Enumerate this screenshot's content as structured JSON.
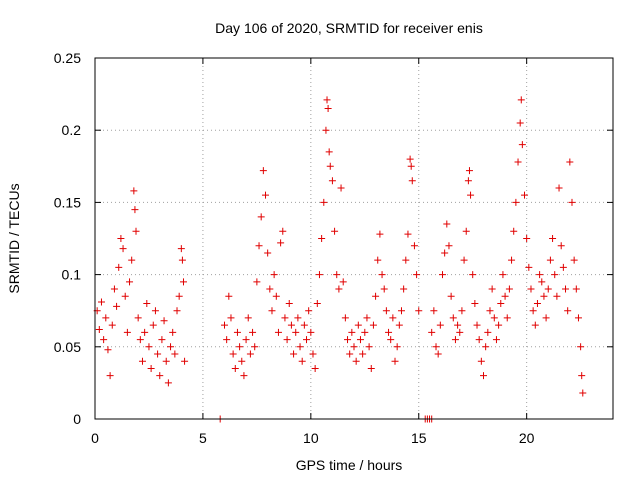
{
  "chart_data": {
    "type": "scatter",
    "title": "Day 106 of 2020, SRMTID for receiver enis",
    "xlabel": "GPS time / hours",
    "ylabel": "SRMTID / TECUs",
    "xlim": [
      0,
      24
    ],
    "ylim": [
      0,
      0.25
    ],
    "x_ticks": [
      0,
      5,
      10,
      15,
      20
    ],
    "x_tick_labels": [
      "0",
      "5",
      "10",
      "15",
      "20"
    ],
    "y_ticks": [
      0,
      0.05,
      0.1,
      0.15,
      0.2,
      0.25
    ],
    "y_tick_labels": [
      "0",
      "0.05",
      "0.1",
      "0.15",
      "0.2",
      "0.25"
    ],
    "grid": true,
    "marker": "plus",
    "color": "#e00000",
    "series": [
      {
        "name": "SRMTID",
        "segments": [
          {
            "x_start": 0.0,
            "x_end": 4.2
          },
          {
            "x_start": 5.8,
            "x_end": 15.0
          },
          {
            "x_start": 15.6,
            "x_end": 22.6
          }
        ],
        "points": [
          [
            0.1,
            0.075
          ],
          [
            0.2,
            0.062
          ],
          [
            0.3,
            0.081
          ],
          [
            0.4,
            0.055
          ],
          [
            0.5,
            0.07
          ],
          [
            0.6,
            0.048
          ],
          [
            0.7,
            0.03
          ],
          [
            0.8,
            0.065
          ],
          [
            0.9,
            0.09
          ],
          [
            1.0,
            0.078
          ],
          [
            1.1,
            0.105
          ],
          [
            1.2,
            0.125
          ],
          [
            1.3,
            0.118
          ],
          [
            1.4,
            0.085
          ],
          [
            1.5,
            0.06
          ],
          [
            1.6,
            0.095
          ],
          [
            1.7,
            0.11
          ],
          [
            1.8,
            0.158
          ],
          [
            1.85,
            0.145
          ],
          [
            1.9,
            0.13
          ],
          [
            2.0,
            0.07
          ],
          [
            2.1,
            0.055
          ],
          [
            2.2,
            0.04
          ],
          [
            2.3,
            0.06
          ],
          [
            2.4,
            0.08
          ],
          [
            2.5,
            0.05
          ],
          [
            2.6,
            0.035
          ],
          [
            2.7,
            0.065
          ],
          [
            2.8,
            0.075
          ],
          [
            2.9,
            0.045
          ],
          [
            3.0,
            0.03
          ],
          [
            3.1,
            0.055
          ],
          [
            3.2,
            0.068
          ],
          [
            3.3,
            0.04
          ],
          [
            3.4,
            0.025
          ],
          [
            3.5,
            0.05
          ],
          [
            3.6,
            0.06
          ],
          [
            3.7,
            0.045
          ],
          [
            3.8,
            0.075
          ],
          [
            3.9,
            0.085
          ],
          [
            4.0,
            0.118
          ],
          [
            4.05,
            0.11
          ],
          [
            4.1,
            0.095
          ],
          [
            4.15,
            0.04
          ],
          [
            5.8,
            0.0
          ],
          [
            6.0,
            0.065
          ],
          [
            6.1,
            0.055
          ],
          [
            6.2,
            0.085
          ],
          [
            6.3,
            0.07
          ],
          [
            6.4,
            0.045
          ],
          [
            6.5,
            0.035
          ],
          [
            6.6,
            0.06
          ],
          [
            6.7,
            0.05
          ],
          [
            6.8,
            0.04
          ],
          [
            6.9,
            0.03
          ],
          [
            7.0,
            0.055
          ],
          [
            7.1,
            0.07
          ],
          [
            7.2,
            0.045
          ],
          [
            7.3,
            0.06
          ],
          [
            7.4,
            0.05
          ],
          [
            7.5,
            0.095
          ],
          [
            7.6,
            0.12
          ],
          [
            7.7,
            0.14
          ],
          [
            7.8,
            0.172
          ],
          [
            7.9,
            0.155
          ],
          [
            8.0,
            0.115
          ],
          [
            8.1,
            0.09
          ],
          [
            8.2,
            0.075
          ],
          [
            8.3,
            0.1
          ],
          [
            8.4,
            0.085
          ],
          [
            8.5,
            0.06
          ],
          [
            8.6,
            0.122
          ],
          [
            8.7,
            0.13
          ],
          [
            8.8,
            0.07
          ],
          [
            8.9,
            0.055
          ],
          [
            9.0,
            0.08
          ],
          [
            9.1,
            0.065
          ],
          [
            9.2,
            0.045
          ],
          [
            9.3,
            0.06
          ],
          [
            9.4,
            0.07
          ],
          [
            9.5,
            0.05
          ],
          [
            9.6,
            0.04
          ],
          [
            9.7,
            0.065
          ],
          [
            9.8,
            0.055
          ],
          [
            9.9,
            0.075
          ],
          [
            10.0,
            0.06
          ],
          [
            10.1,
            0.045
          ],
          [
            10.2,
            0.035
          ],
          [
            10.3,
            0.08
          ],
          [
            10.4,
            0.1
          ],
          [
            10.5,
            0.125
          ],
          [
            10.6,
            0.15
          ],
          [
            10.7,
            0.2
          ],
          [
            10.75,
            0.221
          ],
          [
            10.8,
            0.215
          ],
          [
            10.85,
            0.185
          ],
          [
            10.9,
            0.175
          ],
          [
            11.0,
            0.165
          ],
          [
            11.1,
            0.13
          ],
          [
            11.2,
            0.1
          ],
          [
            11.3,
            0.09
          ],
          [
            11.4,
            0.16
          ],
          [
            11.5,
            0.095
          ],
          [
            11.6,
            0.07
          ],
          [
            11.7,
            0.055
          ],
          [
            11.8,
            0.045
          ],
          [
            11.9,
            0.06
          ],
          [
            12.0,
            0.05
          ],
          [
            12.1,
            0.04
          ],
          [
            12.2,
            0.065
          ],
          [
            12.3,
            0.055
          ],
          [
            12.4,
            0.045
          ],
          [
            12.5,
            0.06
          ],
          [
            12.6,
            0.07
          ],
          [
            12.7,
            0.05
          ],
          [
            12.8,
            0.035
          ],
          [
            12.9,
            0.065
          ],
          [
            13.0,
            0.085
          ],
          [
            13.1,
            0.11
          ],
          [
            13.2,
            0.128
          ],
          [
            13.3,
            0.1
          ],
          [
            13.4,
            0.09
          ],
          [
            13.5,
            0.075
          ],
          [
            13.6,
            0.06
          ],
          [
            13.7,
            0.055
          ],
          [
            13.8,
            0.07
          ],
          [
            13.9,
            0.04
          ],
          [
            14.0,
            0.05
          ],
          [
            14.1,
            0.065
          ],
          [
            14.2,
            0.075
          ],
          [
            14.3,
            0.09
          ],
          [
            14.4,
            0.11
          ],
          [
            14.5,
            0.128
          ],
          [
            14.6,
            0.18
          ],
          [
            14.65,
            0.175
          ],
          [
            14.7,
            0.165
          ],
          [
            14.8,
            0.12
          ],
          [
            14.9,
            0.1
          ],
          [
            15.0,
            0.075
          ],
          [
            15.3,
            0.0
          ],
          [
            15.4,
            0.0
          ],
          [
            15.5,
            0.0
          ],
          [
            15.6,
            0.0
          ],
          [
            15.6,
            0.06
          ],
          [
            15.7,
            0.075
          ],
          [
            15.8,
            0.05
          ],
          [
            15.9,
            0.045
          ],
          [
            16.0,
            0.065
          ],
          [
            16.1,
            0.1
          ],
          [
            16.2,
            0.115
          ],
          [
            16.3,
            0.135
          ],
          [
            16.4,
            0.12
          ],
          [
            16.5,
            0.085
          ],
          [
            16.6,
            0.07
          ],
          [
            16.7,
            0.055
          ],
          [
            16.8,
            0.065
          ],
          [
            16.9,
            0.06
          ],
          [
            17.0,
            0.075
          ],
          [
            17.1,
            0.11
          ],
          [
            17.2,
            0.13
          ],
          [
            17.3,
            0.165
          ],
          [
            17.35,
            0.172
          ],
          [
            17.4,
            0.155
          ],
          [
            17.5,
            0.1
          ],
          [
            17.6,
            0.08
          ],
          [
            17.7,
            0.065
          ],
          [
            17.8,
            0.055
          ],
          [
            17.9,
            0.04
          ],
          [
            18.0,
            0.03
          ],
          [
            18.1,
            0.05
          ],
          [
            18.2,
            0.06
          ],
          [
            18.3,
            0.075
          ],
          [
            18.4,
            0.09
          ],
          [
            18.5,
            0.07
          ],
          [
            18.6,
            0.055
          ],
          [
            18.7,
            0.065
          ],
          [
            18.8,
            0.08
          ],
          [
            18.9,
            0.1
          ],
          [
            19.0,
            0.085
          ],
          [
            19.1,
            0.07
          ],
          [
            19.2,
            0.09
          ],
          [
            19.3,
            0.11
          ],
          [
            19.4,
            0.13
          ],
          [
            19.5,
            0.15
          ],
          [
            19.6,
            0.178
          ],
          [
            19.7,
            0.205
          ],
          [
            19.75,
            0.221
          ],
          [
            19.8,
            0.19
          ],
          [
            19.9,
            0.155
          ],
          [
            20.0,
            0.125
          ],
          [
            20.1,
            0.105
          ],
          [
            20.2,
            0.09
          ],
          [
            20.3,
            0.075
          ],
          [
            20.4,
            0.065
          ],
          [
            20.5,
            0.08
          ],
          [
            20.6,
            0.1
          ],
          [
            20.7,
            0.095
          ],
          [
            20.8,
            0.085
          ],
          [
            20.9,
            0.07
          ],
          [
            21.0,
            0.09
          ],
          [
            21.1,
            0.11
          ],
          [
            21.2,
            0.125
          ],
          [
            21.3,
            0.1
          ],
          [
            21.4,
            0.085
          ],
          [
            21.5,
            0.16
          ],
          [
            21.6,
            0.12
          ],
          [
            21.7,
            0.105
          ],
          [
            21.8,
            0.09
          ],
          [
            21.9,
            0.075
          ],
          [
            22.0,
            0.178
          ],
          [
            22.1,
            0.15
          ],
          [
            22.2,
            0.11
          ],
          [
            22.3,
            0.09
          ],
          [
            22.4,
            0.07
          ],
          [
            22.5,
            0.05
          ],
          [
            22.55,
            0.03
          ],
          [
            22.6,
            0.018
          ]
        ]
      }
    ]
  }
}
